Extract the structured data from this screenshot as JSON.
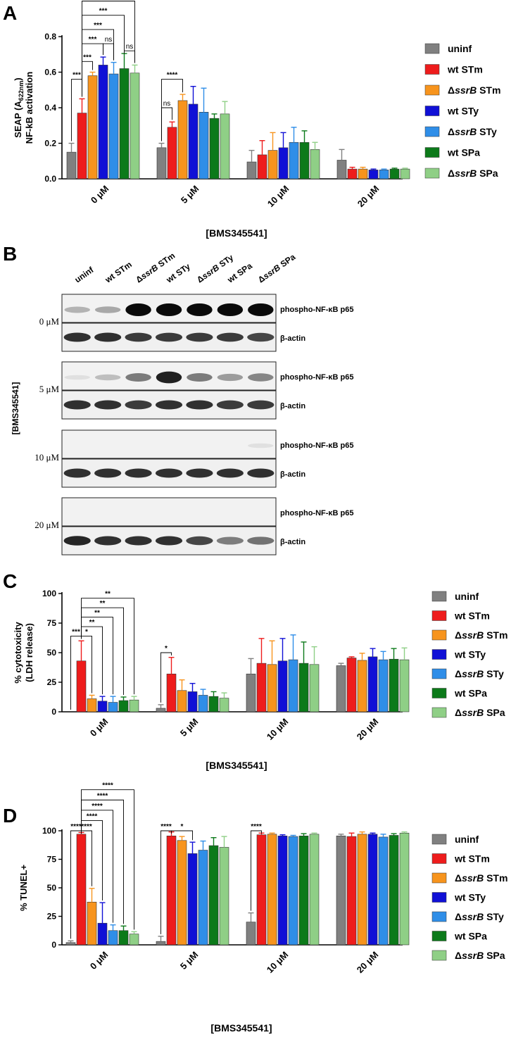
{
  "panels": {
    "A": "A",
    "B": "B",
    "C": "C",
    "D": "D"
  },
  "colors": {
    "uninf": "#808080",
    "wt STm": "#ee1c1c",
    "ssrB STm": "#f7941d",
    "wt STy": "#1010d6",
    "ssrB STy": "#2f8ee8",
    "wt SPa": "#0c7a1a",
    "ssrB SPa": "#8fcf86"
  },
  "legend": [
    {
      "key": "uninf",
      "text": "uninf"
    },
    {
      "key": "wt STm",
      "text": "wt STm"
    },
    {
      "key": "ssrB STm",
      "text": "ΔssrB STm"
    },
    {
      "key": "wt STy",
      "text": "wt STy"
    },
    {
      "key": "ssrB STy",
      "text": "ΔssrB STy"
    },
    {
      "key": "wt SPa",
      "text": "wt SPa"
    },
    {
      "key": "ssrB SPa",
      "text": "ΔssrB SPa"
    }
  ],
  "blot": {
    "lanes": [
      "uninf",
      "wt STm",
      "ΔssrB STm",
      "wt STy",
      "ΔssrB STy",
      "wt SPa",
      "ΔssrB SPa"
    ],
    "concentrations": [
      "0 μM",
      "5 μM",
      "10 μM",
      "20 μM"
    ],
    "band_labels": [
      "phospho-NF-κB p65",
      "β-actin"
    ],
    "side_label": "[BMS345541]",
    "p65_intensity": [
      [
        0.25,
        0.3,
        1.0,
        1.0,
        1.0,
        1.0,
        1.0
      ],
      [
        0.05,
        0.2,
        0.5,
        0.9,
        0.5,
        0.35,
        0.45
      ],
      [
        0.0,
        0.0,
        0.0,
        0.0,
        0.0,
        0.0,
        0.05
      ],
      [
        0.0,
        0.0,
        0.0,
        0.0,
        0.0,
        0.0,
        0.0
      ]
    ],
    "actin_intensity": [
      [
        0.85,
        0.85,
        0.8,
        0.8,
        0.8,
        0.8,
        0.75
      ],
      [
        0.85,
        0.85,
        0.8,
        0.85,
        0.85,
        0.8,
        0.8
      ],
      [
        0.85,
        0.85,
        0.85,
        0.85,
        0.85,
        0.85,
        0.85
      ],
      [
        0.9,
        0.85,
        0.85,
        0.85,
        0.75,
        0.5,
        0.55
      ]
    ]
  },
  "chart_data": [
    {
      "id": "A",
      "type": "bar",
      "ylabel_line1": "SEAP (A",
      "ylabel_sub": "622nm",
      "ylabel_close": ")",
      "ylabel_line2": "NF-kB activation",
      "xlabel": "[BMS345541]",
      "categories": [
        "0 μM",
        "5 μM",
        "10 μM",
        "20 μM"
      ],
      "ylim": [
        0,
        0.8
      ],
      "yticks": [
        "0.0",
        "0.2",
        "0.4",
        "0.6",
        "0.8"
      ],
      "ytick_values": [
        0,
        0.2,
        0.4,
        0.6,
        0.8
      ],
      "series": [
        {
          "name": "uninf",
          "values": [
            0.15,
            0.175,
            0.095,
            0.105
          ],
          "errors": [
            0.05,
            0.025,
            0.065,
            0.06
          ]
        },
        {
          "name": "wt STm",
          "values": [
            0.37,
            0.29,
            0.135,
            0.055
          ],
          "errors": [
            0.08,
            0.03,
            0.08,
            0.01
          ]
        },
        {
          "name": "ΔssrB STm",
          "values": [
            0.58,
            0.44,
            0.16,
            0.055
          ],
          "errors": [
            0.02,
            0.035,
            0.1,
            0.01
          ]
        },
        {
          "name": "wt STy",
          "values": [
            0.64,
            0.42,
            0.175,
            0.05
          ],
          "errors": [
            0.045,
            0.1,
            0.085,
            0.005
          ]
        },
        {
          "name": "ΔssrB STy",
          "values": [
            0.59,
            0.375,
            0.205,
            0.05
          ],
          "errors": [
            0.065,
            0.135,
            0.085,
            0.005
          ]
        },
        {
          "name": "wt SPa",
          "values": [
            0.62,
            0.34,
            0.205,
            0.055
          ],
          "errors": [
            0.085,
            0.025,
            0.065,
            0.005
          ]
        },
        {
          "name": "ΔssrB SPa",
          "values": [
            0.595,
            0.365,
            0.165,
            0.055
          ],
          "errors": [
            0.045,
            0.07,
            0.04,
            0.005
          ]
        }
      ],
      "significance": [
        {
          "cat": 0,
          "from": 0,
          "to": 1,
          "label": "***",
          "level": 0.56
        },
        {
          "cat": 0,
          "from": 1,
          "to": 2,
          "label": "***",
          "level": 0.66
        },
        {
          "cat": 0,
          "from": 1,
          "to": 3,
          "label": "***",
          "level": 0.76
        },
        {
          "cat": 0,
          "from": 3,
          "to": 4,
          "label": "ns",
          "level": 0.76
        },
        {
          "cat": 0,
          "from": 1,
          "to": 4,
          "label": "***",
          "level": 0.84
        },
        {
          "cat": 0,
          "from": 1,
          "to": 5,
          "label": "***",
          "level": 0.92
        },
        {
          "cat": 0,
          "from": 5,
          "to": 6,
          "label": "ns",
          "level": 0.72
        },
        {
          "cat": 0,
          "from": 1,
          "to": 6,
          "label": "***",
          "level": 1.0
        },
        {
          "cat": 1,
          "from": 0,
          "to": 1,
          "label": "ns",
          "level": 0.4
        },
        {
          "cat": 1,
          "from": 0,
          "to": 2,
          "label": "****",
          "level": 0.56
        }
      ]
    },
    {
      "id": "C",
      "type": "bar",
      "ylabel_line1": "% cytotoxicity",
      "ylabel_line2": "(LDH release)",
      "xlabel": "[BMS345541]",
      "categories": [
        "0 μM",
        "5 μM",
        "10 μM",
        "20 μM"
      ],
      "ylim": [
        0,
        100
      ],
      "yticks": [
        "0",
        "25",
        "50",
        "75",
        "100"
      ],
      "ytick_values": [
        0,
        25,
        50,
        75,
        100
      ],
      "series": [
        {
          "name": "uninf",
          "values": [
            0,
            3,
            32,
            39
          ],
          "errors": [
            0,
            3,
            13,
            2
          ]
        },
        {
          "name": "wt STm",
          "values": [
            43,
            32,
            41,
            45.5
          ],
          "errors": [
            17,
            14,
            21,
            1
          ]
        },
        {
          "name": "ΔssrB STm",
          "values": [
            11,
            18,
            40,
            43.5
          ],
          "errors": [
            3,
            9,
            20,
            6
          ]
        },
        {
          "name": "wt STy",
          "values": [
            9,
            17,
            43,
            46.5
          ],
          "errors": [
            4,
            7,
            19,
            7
          ]
        },
        {
          "name": "ΔssrB STy",
          "values": [
            8,
            14,
            44,
            44
          ],
          "errors": [
            5,
            5,
            21,
            7
          ]
        },
        {
          "name": "wt SPa",
          "values": [
            9.5,
            13,
            41,
            44.5
          ],
          "errors": [
            3,
            4,
            18,
            9
          ]
        },
        {
          "name": "ΔssrB SPa",
          "values": [
            10,
            11.5,
            40,
            44
          ],
          "errors": [
            3,
            4.5,
            15,
            10
          ]
        }
      ],
      "significance": [
        {
          "cat": 0,
          "from": 0,
          "to": 1,
          "label": "***",
          "level": 64
        },
        {
          "cat": 0,
          "from": 1,
          "to": 2,
          "label": "*",
          "level": 64
        },
        {
          "cat": 0,
          "from": 1,
          "to": 3,
          "label": "**",
          "level": 72
        },
        {
          "cat": 0,
          "from": 1,
          "to": 4,
          "label": "**",
          "level": 80
        },
        {
          "cat": 0,
          "from": 1,
          "to": 5,
          "label": "**",
          "level": 88
        },
        {
          "cat": 0,
          "from": 1,
          "to": 6,
          "label": "**",
          "level": 96
        },
        {
          "cat": 1,
          "from": 0,
          "to": 1,
          "label": "*",
          "level": 50
        }
      ]
    },
    {
      "id": "D",
      "type": "bar",
      "ylabel_line1": "% TUNEL+",
      "ylabel_line2": "",
      "xlabel": "[BMS345541]",
      "categories": [
        "0 μM",
        "5 μM",
        "10 μM",
        "20 μM"
      ],
      "ylim": [
        0,
        100
      ],
      "yticks": [
        "0",
        "25",
        "50",
        "75",
        "100"
      ],
      "ytick_values": [
        0,
        25,
        50,
        75,
        100
      ],
      "series": [
        {
          "name": "uninf",
          "values": [
            2,
            3,
            20,
            95.5
          ],
          "errors": [
            1.5,
            4.5,
            8,
            1.5
          ]
        },
        {
          "name": "wt STm",
          "values": [
            97,
            95.5,
            96.5,
            95
          ],
          "errors": [
            1.5,
            3.5,
            1.5,
            3
          ]
        },
        {
          "name": "ΔssrB STm",
          "values": [
            37.5,
            91.5,
            97,
            97
          ],
          "errors": [
            12,
            3.5,
            1,
            2
          ]
        },
        {
          "name": "wt STy",
          "values": [
            19,
            80,
            95.5,
            97
          ],
          "errors": [
            18,
            10,
            1,
            1
          ]
        },
        {
          "name": "ΔssrB STy",
          "values": [
            12.5,
            83,
            95,
            94.5
          ],
          "errors": [
            5,
            8,
            1,
            2.5
          ]
        },
        {
          "name": "wt SPa",
          "values": [
            12.5,
            87,
            95.5,
            96
          ],
          "errors": [
            4,
            7,
            2,
            1.5
          ]
        },
        {
          "name": "ΔssrB SPa",
          "values": [
            9.5,
            85.5,
            97,
            98
          ],
          "errors": [
            2,
            9.5,
            1,
            1
          ]
        }
      ],
      "significance": [
        {
          "cat": 0,
          "from": 0,
          "to": 1,
          "label": "****",
          "level": 100
        },
        {
          "cat": 0,
          "from": 1,
          "to": 2,
          "label": "****",
          "level": 100
        },
        {
          "cat": 0,
          "from": 1,
          "to": 3,
          "label": "****",
          "level": 109
        },
        {
          "cat": 0,
          "from": 1,
          "to": 4,
          "label": "****",
          "level": 118
        },
        {
          "cat": 0,
          "from": 1,
          "to": 5,
          "label": "****",
          "level": 127
        },
        {
          "cat": 0,
          "from": 1,
          "to": 6,
          "label": "****",
          "level": 136
        },
        {
          "cat": 1,
          "from": 0,
          "to": 1,
          "label": "****",
          "level": 100
        },
        {
          "cat": 1,
          "from": 1,
          "to": 3,
          "label": "*",
          "level": 100
        },
        {
          "cat": 2,
          "from": 0,
          "to": 1,
          "label": "****",
          "level": 100
        }
      ]
    }
  ]
}
